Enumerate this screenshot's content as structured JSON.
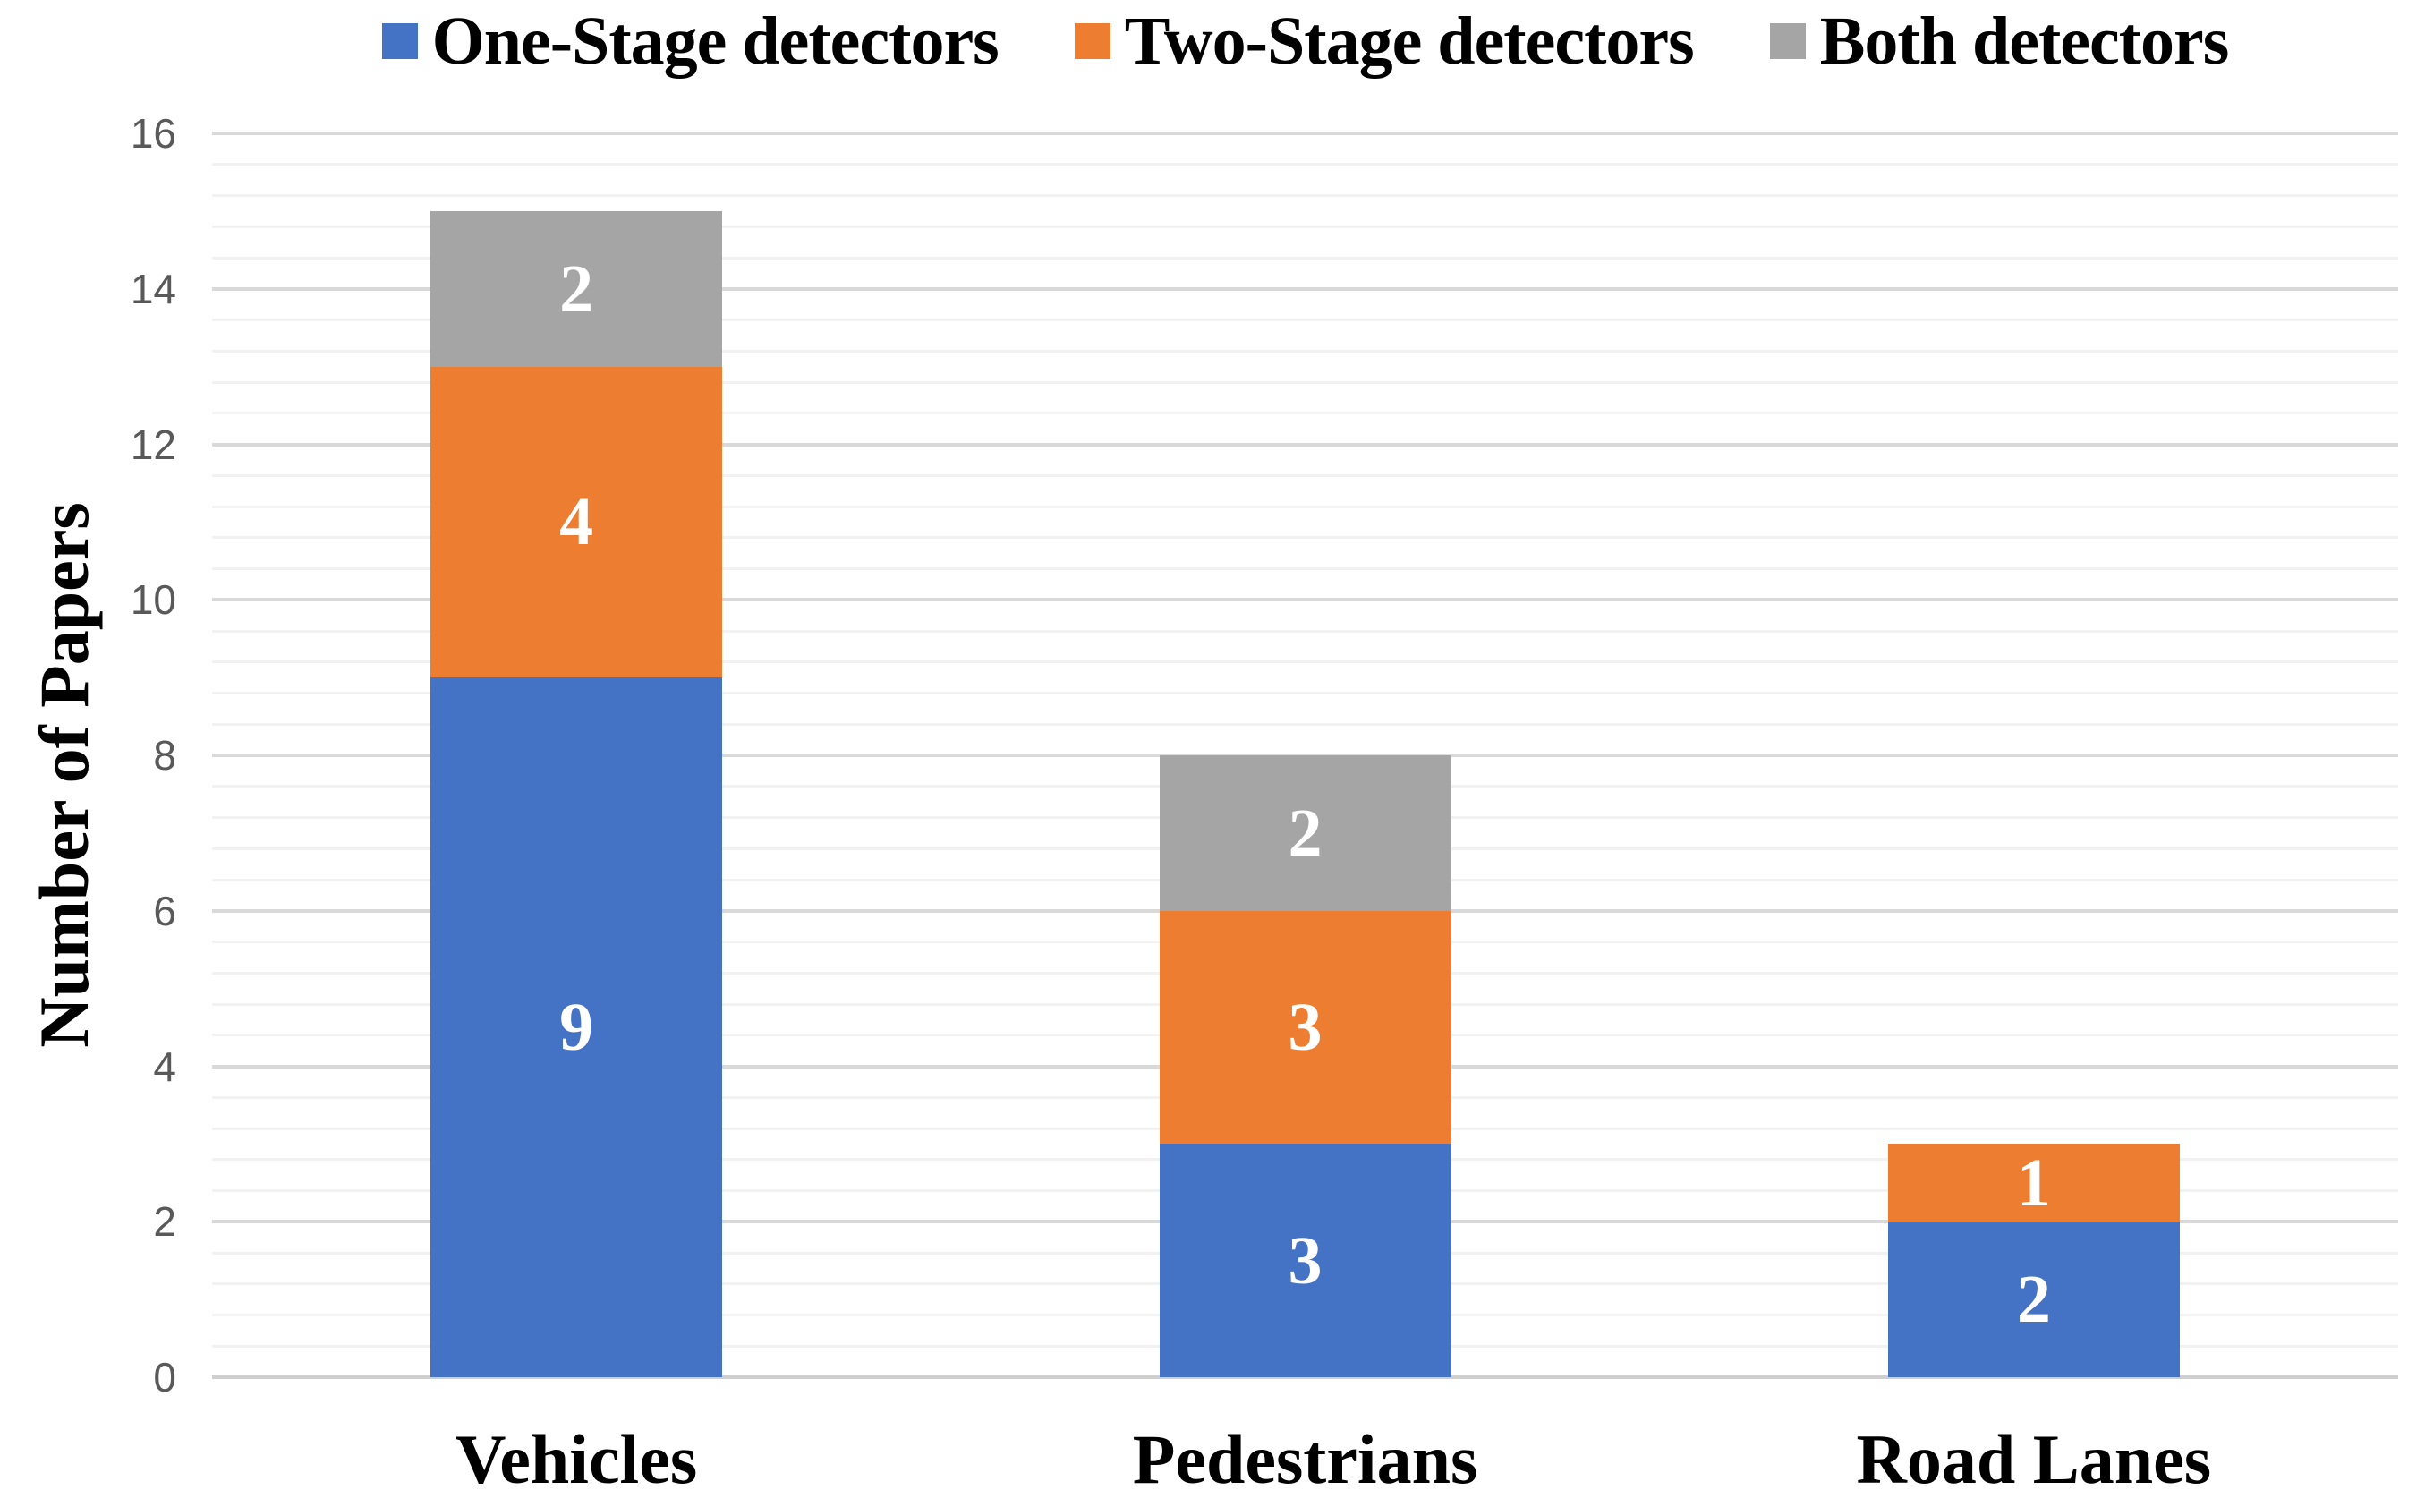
{
  "legend": {
    "items": [
      {
        "label": "One-Stage detectors",
        "color": "#4472C4",
        "icon": "blue-square-swatch"
      },
      {
        "label": "Two-Stage detectors",
        "color": "#ED7D31",
        "icon": "orange-square-swatch"
      },
      {
        "label": "Both detectors",
        "color": "#A5A5A5",
        "icon": "gray-square-swatch"
      }
    ]
  },
  "chart_data": {
    "type": "bar",
    "stacked": true,
    "title": "",
    "xlabel": "",
    "ylabel": "Number of  Papers",
    "categories": [
      "Vehicles",
      "Pedestrians",
      "Road Lanes"
    ],
    "series": [
      {
        "name": "One-Stage detectors",
        "color": "#4472C4",
        "values": [
          9,
          3,
          2
        ]
      },
      {
        "name": "Two-Stage detectors",
        "color": "#ED7D31",
        "values": [
          4,
          3,
          1
        ]
      },
      {
        "name": "Both detectors",
        "color": "#A5A5A5",
        "values": [
          2,
          2,
          0
        ]
      }
    ],
    "totals": [
      15,
      8,
      3
    ],
    "ylim": [
      0,
      16
    ],
    "yticks": [
      0,
      2,
      4,
      6,
      8,
      10,
      12,
      14,
      16
    ],
    "y_major_unit": 2,
    "y_minor_unit": 0.4,
    "grid": "horizontal major and minor gridlines",
    "legend_position": "top-center",
    "value_label_style": "white bold serif, centered in each segment, hidden when 0",
    "colors": {
      "tick_label": "#595959",
      "major_gridline": "#D9D9D9",
      "minor_gridline": "#F2F2F2",
      "axis_line": "#CFCFCF",
      "value_label": "#FFFFFF",
      "category_label": "#000000",
      "legend_label": "#000000",
      "background": "#FFFFFF"
    }
  }
}
